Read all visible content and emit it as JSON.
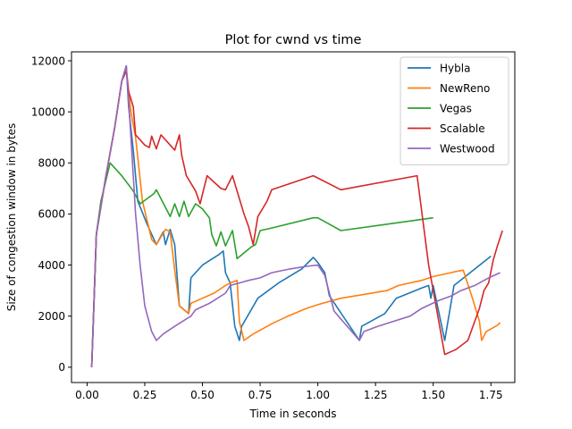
{
  "chart_data": {
    "type": "line",
    "title": "Plot for cwnd vs time",
    "xlabel": "Time in seconds",
    "ylabel": "Size of congestion window in bytes",
    "xlim": [
      -0.0675,
      1.8535
    ],
    "ylim": [
      -600,
      12350
    ],
    "xticks": [
      0.0,
      0.25,
      0.5,
      0.75,
      1.0,
      1.25,
      1.5,
      1.75
    ],
    "xtick_labels": [
      "0.00",
      "0.25",
      "0.50",
      "0.75",
      "1.00",
      "1.25",
      "1.50",
      "1.75"
    ],
    "yticks": [
      0,
      2000,
      4000,
      6000,
      8000,
      10000,
      12000
    ],
    "ytick_labels": [
      "0",
      "2000",
      "4000",
      "6000",
      "8000",
      "10000",
      "12000"
    ],
    "grid": false,
    "legend_position": "top-right",
    "series": [
      {
        "name": "Hybla",
        "color": "#1f77b4",
        "points": [
          [
            0.02,
            0
          ],
          [
            0.04,
            5200
          ],
          [
            0.08,
            7400
          ],
          [
            0.12,
            9400
          ],
          [
            0.15,
            11200
          ],
          [
            0.17,
            11800
          ],
          [
            0.18,
            10200
          ],
          [
            0.2,
            8500
          ],
          [
            0.22,
            6500
          ],
          [
            0.26,
            5600
          ],
          [
            0.3,
            4800
          ],
          [
            0.33,
            5300
          ],
          [
            0.34,
            4800
          ],
          [
            0.36,
            5400
          ],
          [
            0.38,
            4800
          ],
          [
            0.4,
            2400
          ],
          [
            0.44,
            2100
          ],
          [
            0.45,
            3500
          ],
          [
            0.5,
            4000
          ],
          [
            0.57,
            4400
          ],
          [
            0.59,
            4550
          ],
          [
            0.6,
            3700
          ],
          [
            0.62,
            3300
          ],
          [
            0.64,
            1600
          ],
          [
            0.66,
            1050
          ],
          [
            0.67,
            1600
          ],
          [
            0.74,
            2700
          ],
          [
            0.83,
            3300
          ],
          [
            0.93,
            3850
          ],
          [
            0.98,
            4300
          ],
          [
            1.0,
            4100
          ],
          [
            1.03,
            3700
          ],
          [
            1.05,
            2800
          ],
          [
            1.18,
            1050
          ],
          [
            1.19,
            1600
          ],
          [
            1.29,
            2100
          ],
          [
            1.34,
            2700
          ],
          [
            1.45,
            3100
          ],
          [
            1.48,
            3200
          ],
          [
            1.49,
            2700
          ],
          [
            1.5,
            3200
          ],
          [
            1.55,
            1050
          ],
          [
            1.59,
            3200
          ],
          [
            1.66,
            3700
          ],
          [
            1.75,
            4350
          ]
        ]
      },
      {
        "name": "NewReno",
        "color": "#ff7f0e",
        "points": [
          [
            0.02,
            0
          ],
          [
            0.04,
            5200
          ],
          [
            0.08,
            7400
          ],
          [
            0.12,
            9400
          ],
          [
            0.15,
            11200
          ],
          [
            0.17,
            11700
          ],
          [
            0.19,
            10000
          ],
          [
            0.21,
            9000
          ],
          [
            0.24,
            6500
          ],
          [
            0.28,
            5000
          ],
          [
            0.3,
            4800
          ],
          [
            0.34,
            5400
          ],
          [
            0.36,
            5300
          ],
          [
            0.38,
            3800
          ],
          [
            0.4,
            2400
          ],
          [
            0.44,
            2100
          ],
          [
            0.45,
            2500
          ],
          [
            0.5,
            2700
          ],
          [
            0.55,
            2900
          ],
          [
            0.6,
            3200
          ],
          [
            0.62,
            3300
          ],
          [
            0.65,
            3400
          ],
          [
            0.66,
            1800
          ],
          [
            0.68,
            1050
          ],
          [
            0.72,
            1300
          ],
          [
            0.8,
            1700
          ],
          [
            0.87,
            2000
          ],
          [
            0.95,
            2300
          ],
          [
            1.0,
            2450
          ],
          [
            1.1,
            2700
          ],
          [
            1.2,
            2850
          ],
          [
            1.3,
            3000
          ],
          [
            1.35,
            3200
          ],
          [
            1.45,
            3400
          ],
          [
            1.5,
            3550
          ],
          [
            1.55,
            3650
          ],
          [
            1.6,
            3750
          ],
          [
            1.63,
            3800
          ],
          [
            1.67,
            2700
          ],
          [
            1.7,
            1800
          ],
          [
            1.71,
            1050
          ],
          [
            1.73,
            1400
          ],
          [
            1.78,
            1650
          ],
          [
            1.79,
            1750
          ]
        ]
      },
      {
        "name": "Vegas",
        "color": "#2ca02c",
        "points": [
          [
            0.02,
            0
          ],
          [
            0.04,
            5200
          ],
          [
            0.06,
            6500
          ],
          [
            0.1,
            8000
          ],
          [
            0.15,
            7500
          ],
          [
            0.2,
            6900
          ],
          [
            0.23,
            6400
          ],
          [
            0.29,
            6800
          ],
          [
            0.3,
            6950
          ],
          [
            0.36,
            5900
          ],
          [
            0.38,
            6400
          ],
          [
            0.4,
            5900
          ],
          [
            0.42,
            6500
          ],
          [
            0.44,
            5900
          ],
          [
            0.47,
            6400
          ],
          [
            0.5,
            6200
          ],
          [
            0.53,
            5850
          ],
          [
            0.54,
            5200
          ],
          [
            0.56,
            4750
          ],
          [
            0.58,
            5300
          ],
          [
            0.6,
            4750
          ],
          [
            0.63,
            5350
          ],
          [
            0.65,
            4250
          ],
          [
            0.71,
            4700
          ],
          [
            0.73,
            4800
          ],
          [
            0.75,
            5350
          ],
          [
            0.8,
            5450
          ],
          [
            0.98,
            5850
          ],
          [
            1.0,
            5850
          ],
          [
            1.1,
            5350
          ],
          [
            1.5,
            5850
          ]
        ]
      },
      {
        "name": "Scalable",
        "color": "#d62728",
        "points": [
          [
            0.02,
            0
          ],
          [
            0.04,
            5200
          ],
          [
            0.08,
            7400
          ],
          [
            0.12,
            9400
          ],
          [
            0.15,
            11200
          ],
          [
            0.17,
            11600
          ],
          [
            0.18,
            10800
          ],
          [
            0.2,
            10200
          ],
          [
            0.21,
            9100
          ],
          [
            0.25,
            8700
          ],
          [
            0.27,
            8600
          ],
          [
            0.28,
            9050
          ],
          [
            0.3,
            8550
          ],
          [
            0.32,
            9100
          ],
          [
            0.36,
            8700
          ],
          [
            0.38,
            8500
          ],
          [
            0.4,
            9100
          ],
          [
            0.41,
            8300
          ],
          [
            0.43,
            7500
          ],
          [
            0.47,
            6900
          ],
          [
            0.49,
            6400
          ],
          [
            0.52,
            7500
          ],
          [
            0.58,
            7000
          ],
          [
            0.6,
            6950
          ],
          [
            0.63,
            7500
          ],
          [
            0.68,
            6000
          ],
          [
            0.7,
            5500
          ],
          [
            0.72,
            4800
          ],
          [
            0.74,
            5900
          ],
          [
            0.78,
            6500
          ],
          [
            0.8,
            6950
          ],
          [
            0.98,
            7500
          ],
          [
            1.1,
            6950
          ],
          [
            1.43,
            7500
          ],
          [
            1.48,
            4000
          ],
          [
            1.55,
            500
          ],
          [
            1.6,
            700
          ],
          [
            1.65,
            1050
          ],
          [
            1.7,
            2300
          ],
          [
            1.72,
            3000
          ],
          [
            1.74,
            3300
          ],
          [
            1.76,
            4200
          ],
          [
            1.78,
            4800
          ],
          [
            1.8,
            5350
          ]
        ]
      },
      {
        "name": "Westwood",
        "color": "#9467bd",
        "points": [
          [
            0.02,
            0
          ],
          [
            0.04,
            5200
          ],
          [
            0.08,
            7400
          ],
          [
            0.12,
            9400
          ],
          [
            0.15,
            11200
          ],
          [
            0.17,
            11800
          ],
          [
            0.19,
            9000
          ],
          [
            0.21,
            6000
          ],
          [
            0.23,
            4000
          ],
          [
            0.25,
            2400
          ],
          [
            0.28,
            1400
          ],
          [
            0.3,
            1050
          ],
          [
            0.33,
            1300
          ],
          [
            0.38,
            1600
          ],
          [
            0.45,
            2000
          ],
          [
            0.47,
            2250
          ],
          [
            0.53,
            2500
          ],
          [
            0.6,
            2900
          ],
          [
            0.62,
            3200
          ],
          [
            0.66,
            3300
          ],
          [
            0.7,
            3400
          ],
          [
            0.75,
            3500
          ],
          [
            0.8,
            3700
          ],
          [
            0.88,
            3850
          ],
          [
            0.95,
            3950
          ],
          [
            1.0,
            4000
          ],
          [
            1.03,
            3600
          ],
          [
            1.07,
            2200
          ],
          [
            1.18,
            1050
          ],
          [
            1.2,
            1400
          ],
          [
            1.26,
            1600
          ],
          [
            1.33,
            1800
          ],
          [
            1.4,
            2000
          ],
          [
            1.45,
            2300
          ],
          [
            1.52,
            2600
          ],
          [
            1.58,
            2800
          ],
          [
            1.62,
            3000
          ],
          [
            1.68,
            3200
          ],
          [
            1.74,
            3500
          ],
          [
            1.79,
            3700
          ]
        ]
      }
    ]
  }
}
